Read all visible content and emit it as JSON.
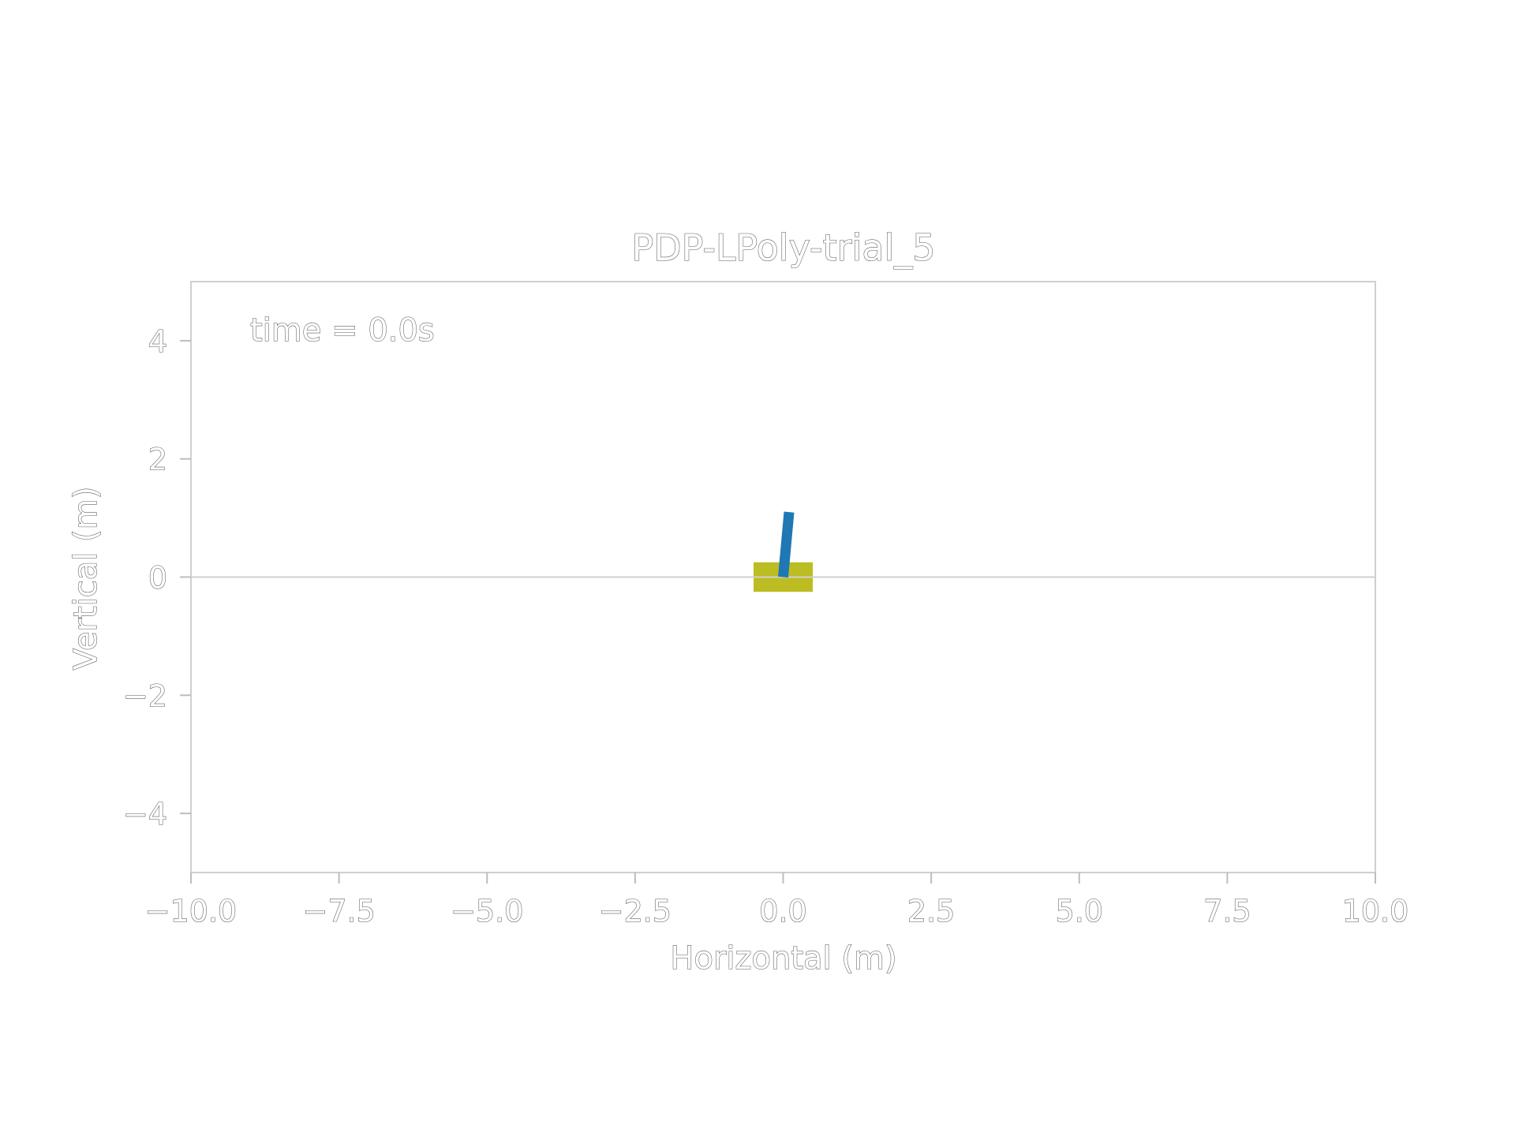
{
  "chart_data": {
    "type": "scatter",
    "title": "PDP-LPoly-trial_5",
    "xlabel": "Horizontal (m)",
    "ylabel": "Vertical (m)",
    "xlim": [
      -10.0,
      10.0
    ],
    "ylim": [
      -5.0,
      5.0
    ],
    "xticks": [
      -10.0,
      -7.5,
      -5.0,
      -2.5,
      0.0,
      2.5,
      5.0,
      7.5,
      10.0
    ],
    "xtick_labels": [
      "−10.0",
      "−7.5",
      "−5.0",
      "−2.5",
      "0.0",
      "2.5",
      "5.0",
      "7.5",
      "10.0"
    ],
    "yticks": [
      -4,
      -2,
      0,
      2,
      4
    ],
    "ytick_labels": [
      "−4",
      "−2",
      "0",
      "2",
      "4"
    ],
    "annotation": "time = 0.0s",
    "grid": false,
    "ground_line": {
      "y": 0.0,
      "color": "#cfcfcf"
    },
    "cart": {
      "x_center": 0.0,
      "y_center": 0.0,
      "width": 1.0,
      "height": 0.5,
      "color": "#bcbd22"
    },
    "pole": {
      "x0": 0.0,
      "y0": 0.0,
      "x1": 0.1,
      "y1": 1.1,
      "color": "#1f77b4"
    }
  }
}
